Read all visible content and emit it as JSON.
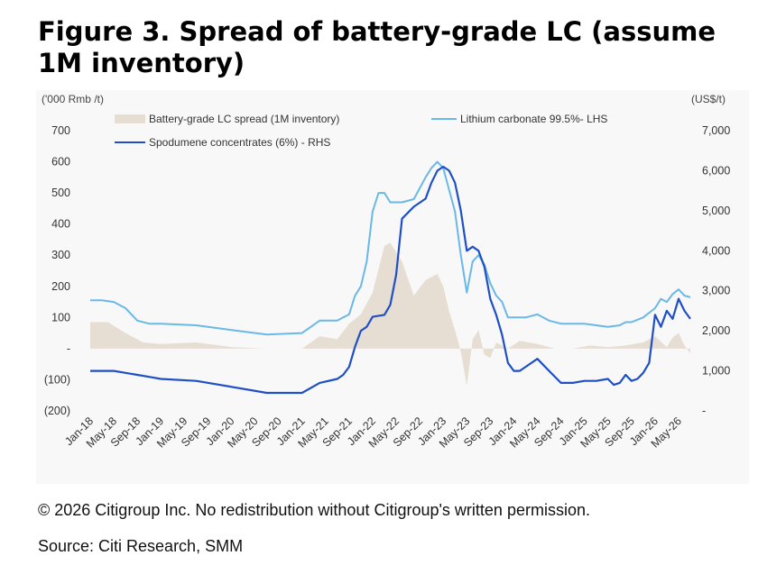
{
  "title": "Figure 3. Spread of battery-grade LC (assume 1M inventory)",
  "copyright": "© 2026 Citigroup Inc. No redistribution without Citigroup's written permission.",
  "source": "Source: Citi Research, SMM",
  "chart_data": {
    "type": "line",
    "left_unit": "('000 Rmb /t)",
    "right_unit": "(US$/t)",
    "left_ticks": [
      "700",
      "600",
      "500",
      "400",
      "300",
      "200",
      "100",
      "-",
      "(100)",
      "(200)"
    ],
    "right_ticks": [
      "7,000",
      "6,000",
      "5,000",
      "4,000",
      "3,000",
      "2,000",
      "1,000",
      "-"
    ],
    "left_ylim": [
      -200,
      700
    ],
    "right_ylim": [
      0,
      7000
    ],
    "x_ticks": [
      "Jan-18",
      "May-18",
      "Sep-18",
      "Jan-19",
      "May-19",
      "Sep-19",
      "Jan-20",
      "May-20",
      "Sep-20",
      "Jan-21",
      "May-21",
      "Sep-21",
      "Jan-22",
      "May-22",
      "Sep-22",
      "Jan-23",
      "May-23",
      "Sep-23",
      "Jan-24",
      "May-24",
      "Sep-24",
      "Jan-25",
      "May-25",
      "Sep-25",
      "Jan-26",
      "May-26"
    ],
    "x_range_months": [
      "Jan-18",
      "Jul-26"
    ],
    "legend_position": "top",
    "colors": {
      "spread": "#e6ddd3",
      "lithium": "#6ab8e8",
      "spodumene": "#1f4fc4",
      "plot_bg": "#f8f8f8"
    },
    "series": [
      {
        "name": "Battery-grade LC spread (1M inventory)",
        "kind": "area",
        "axis": "left",
        "x": [
          "Jan-18",
          "Apr-18",
          "Jul-18",
          "Oct-18",
          "Jan-19",
          "Jul-19",
          "Jan-20",
          "Jul-20",
          "Jan-21",
          "Apr-21",
          "Jul-21",
          "Sep-21",
          "Nov-21",
          "Jan-22",
          "Mar-22",
          "Apr-22",
          "Jun-22",
          "Aug-22",
          "Oct-22",
          "Dec-22",
          "Jan-23",
          "Feb-23",
          "Mar-23",
          "Apr-23",
          "May-23",
          "Jun-23",
          "Jul-23",
          "Aug-23",
          "Sep-23",
          "Oct-23",
          "Dec-23",
          "Feb-24",
          "May-24",
          "Aug-24",
          "Nov-24",
          "Feb-25",
          "May-25",
          "Aug-25",
          "Nov-25",
          "Jan-26",
          "Mar-26",
          "Apr-26",
          "May-26",
          "Jun-26",
          "Jul-26"
        ],
        "values": [
          85,
          85,
          50,
          20,
          15,
          20,
          5,
          0,
          0,
          40,
          30,
          80,
          110,
          180,
          330,
          340,
          280,
          170,
          220,
          240,
          200,
          120,
          60,
          -10,
          -120,
          30,
          60,
          -20,
          -30,
          20,
          0,
          25,
          15,
          0,
          0,
          10,
          5,
          10,
          20,
          40,
          5,
          35,
          50,
          10,
          -15
        ]
      },
      {
        "name": "Lithium carbonate 99.5%- LHS",
        "kind": "line",
        "axis": "left",
        "x": [
          "Jan-18",
          "Mar-18",
          "May-18",
          "Jul-18",
          "Sep-18",
          "Nov-18",
          "Jan-19",
          "Jul-19",
          "Jan-20",
          "Jul-20",
          "Jan-21",
          "Apr-21",
          "Jul-21",
          "Aug-21",
          "Sep-21",
          "Oct-21",
          "Nov-21",
          "Dec-21",
          "Jan-22",
          "Feb-22",
          "Mar-22",
          "Apr-22",
          "Jun-22",
          "Aug-22",
          "Oct-22",
          "Nov-22",
          "Dec-22",
          "Jan-23",
          "Feb-23",
          "Mar-23",
          "Apr-23",
          "May-23",
          "Jun-23",
          "Jul-23",
          "Aug-23",
          "Sep-23",
          "Oct-23",
          "Nov-23",
          "Dec-23",
          "Jan-24",
          "Mar-24",
          "May-24",
          "Jul-24",
          "Sep-24",
          "Nov-24",
          "Jan-25",
          "Mar-25",
          "May-25",
          "Jul-25",
          "Aug-25",
          "Sep-25",
          "Nov-25",
          "Jan-26",
          "Feb-26",
          "Mar-26",
          "Apr-26",
          "May-26",
          "Jun-26",
          "Jul-26"
        ],
        "values": [
          155,
          155,
          150,
          130,
          90,
          80,
          80,
          75,
          60,
          45,
          50,
          90,
          90,
          100,
          110,
          170,
          200,
          280,
          440,
          500,
          500,
          470,
          470,
          480,
          550,
          580,
          600,
          580,
          510,
          440,
          300,
          180,
          280,
          300,
          270,
          210,
          170,
          150,
          100,
          100,
          100,
          110,
          90,
          80,
          80,
          80,
          75,
          70,
          75,
          85,
          85,
          100,
          130,
          160,
          150,
          175,
          190,
          170,
          165
        ]
      },
      {
        "name": "Spodumene concentrates (6%) - RHS",
        "kind": "line",
        "axis": "right",
        "x": [
          "Jan-18",
          "Mar-18",
          "May-18",
          "Jul-18",
          "Sep-18",
          "Nov-18",
          "Jan-19",
          "Jul-19",
          "Jan-20",
          "Jul-20",
          "Jan-21",
          "Apr-21",
          "Jul-21",
          "Aug-21",
          "Sep-21",
          "Oct-21",
          "Nov-21",
          "Dec-21",
          "Jan-22",
          "Mar-22",
          "Apr-22",
          "May-22",
          "Jun-22",
          "Aug-22",
          "Oct-22",
          "Nov-22",
          "Dec-22",
          "Jan-23",
          "Feb-23",
          "Mar-23",
          "Apr-23",
          "May-23",
          "Jun-23",
          "Jul-23",
          "Aug-23",
          "Sep-23",
          "Oct-23",
          "Nov-23",
          "Dec-23",
          "Jan-24",
          "Feb-24",
          "Mar-24",
          "May-24",
          "Jul-24",
          "Sep-24",
          "Nov-24",
          "Jan-25",
          "Mar-25",
          "May-25",
          "Jun-25",
          "Jul-25",
          "Aug-25",
          "Sep-25",
          "Oct-25",
          "Nov-25",
          "Dec-25",
          "Jan-26",
          "Feb-26",
          "Mar-26",
          "Apr-26",
          "May-26",
          "Jun-26",
          "Jul-26"
        ],
        "values": [
          1000,
          1000,
          1000,
          950,
          900,
          850,
          800,
          750,
          600,
          450,
          450,
          700,
          800,
          900,
          1100,
          1600,
          2000,
          2100,
          2350,
          2400,
          2650,
          3400,
          4800,
          5100,
          5300,
          5700,
          6000,
          6100,
          6000,
          5700,
          5000,
          4000,
          4100,
          4000,
          3600,
          2800,
          2400,
          1900,
          1200,
          1000,
          1000,
          1100,
          1300,
          1000,
          700,
          700,
          750,
          750,
          800,
          650,
          700,
          900,
          750,
          800,
          950,
          1200,
          2400,
          2100,
          2500,
          2300,
          2800,
          2500,
          2300
        ]
      }
    ]
  }
}
